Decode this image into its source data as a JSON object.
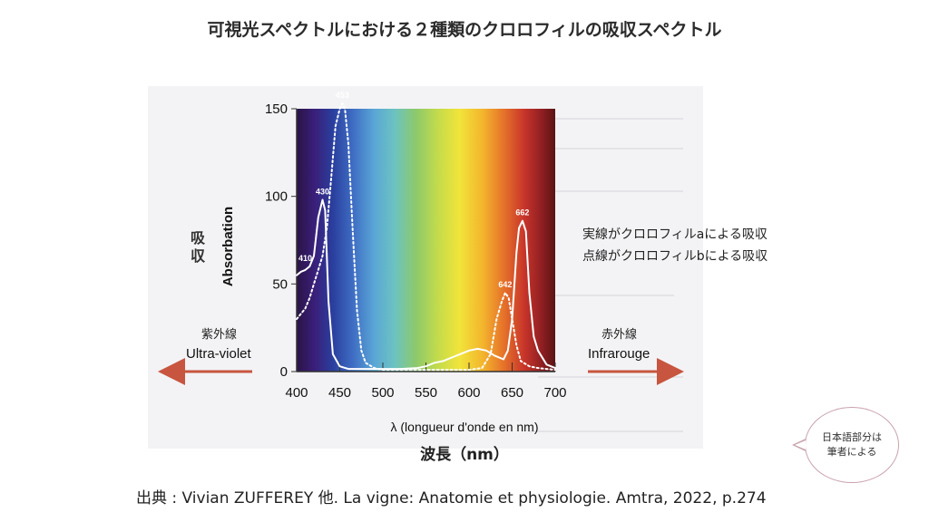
{
  "title": "可視光スペクトルにおける２種類のクロロフィルの吸収スペクトル",
  "notes": {
    "line1": "実線がクロロフィルaによる吸収",
    "line2": "点線がクロロフィルbによる吸収"
  },
  "left_side": {
    "jp": "紫外線",
    "fr": "Ultra-violet"
  },
  "right_side": {
    "jp": "赤外線",
    "fr": "Infrarouge"
  },
  "y_label_jp": "吸収",
  "x_label_jp": "波長（nm）",
  "source": "出典 : Vivian ZUFFEREY 他. La vigne: Anatomie et physiologie. Amtra, 2022, p.274",
  "bubble": {
    "line1": "日本語部分は",
    "line2": "筆者による"
  },
  "colors": {
    "arrow": "#c8553f",
    "bubble_border": "#c9a3ad"
  },
  "chart_data": {
    "type": "line",
    "xlabel": "λ (longueur d'onde en nm)",
    "ylabel": "Absorbation",
    "xlim": [
      400,
      700
    ],
    "ylim": [
      0,
      150
    ],
    "x_ticks": [
      400,
      450,
      500,
      550,
      600,
      650,
      700
    ],
    "y_ticks": [
      0,
      50,
      100,
      150
    ],
    "grid": false,
    "series": [
      {
        "line_style": "solid",
        "x": [
          400,
          405,
          410,
          415,
          420,
          425,
          430,
          433,
          437,
          442,
          450,
          460,
          480,
          500,
          520,
          540,
          550,
          560,
          570,
          580,
          590,
          600,
          610,
          620,
          630,
          640,
          645,
          650,
          655,
          658,
          662,
          666,
          670,
          675,
          680,
          690,
          700
        ],
        "y": [
          55,
          57,
          58,
          60,
          66,
          88,
          98,
          92,
          40,
          10,
          3,
          1.5,
          1.5,
          1.5,
          1.5,
          2,
          3,
          5,
          6,
          8,
          10,
          12,
          13,
          12,
          9,
          7,
          12,
          30,
          68,
          82,
          86,
          80,
          45,
          20,
          12,
          4,
          2
        ]
      },
      {
        "line_style": "dotted",
        "x": [
          400,
          410,
          415,
          420,
          425,
          430,
          435,
          440,
          445,
          450,
          453,
          456,
          460,
          465,
          470,
          475,
          480,
          490,
          500,
          550,
          600,
          615,
          625,
          632,
          638,
          642,
          646,
          650,
          655,
          660,
          670,
          680,
          700
        ],
        "y": [
          30,
          36,
          42,
          50,
          58,
          66,
          82,
          110,
          140,
          150,
          153,
          150,
          130,
          80,
          35,
          12,
          5,
          2,
          1,
          1,
          1,
          2,
          10,
          30,
          40,
          45,
          42,
          30,
          15,
          6,
          3,
          2,
          1
        ]
      }
    ],
    "annotations": [
      {
        "x": 410,
        "y": 60,
        "label": "410"
      },
      {
        "x": 430,
        "y": 98,
        "label": "430"
      },
      {
        "x": 453,
        "y": 153,
        "label": "453"
      },
      {
        "x": 642,
        "y": 45,
        "label": "642"
      },
      {
        "x": 662,
        "y": 86,
        "label": "662"
      }
    ]
  }
}
